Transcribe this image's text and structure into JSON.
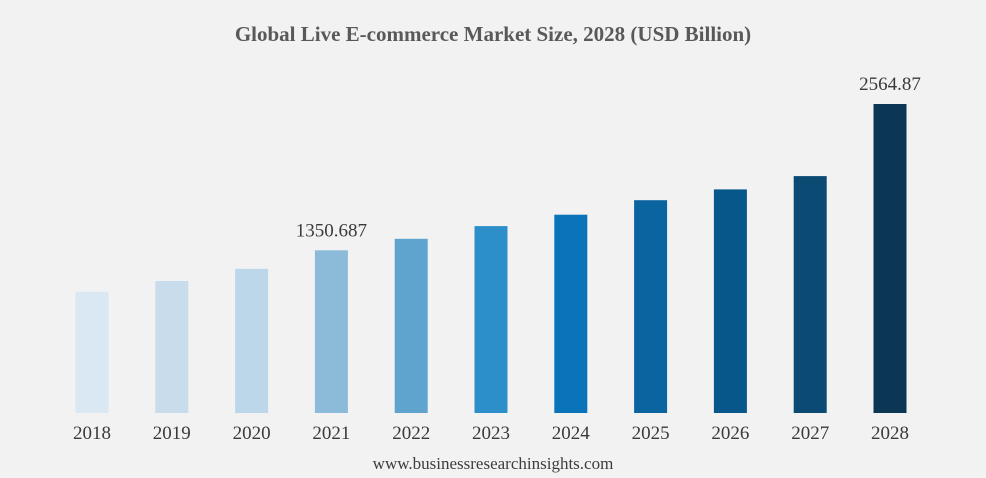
{
  "chart_data": {
    "type": "bar",
    "title": "Global Live E-commerce Market Size, 2028 (USD Billion)",
    "xlabel": "",
    "ylabel": "",
    "categories": [
      "2018",
      "2019",
      "2020",
      "2021",
      "2022",
      "2023",
      "2024",
      "2025",
      "2026",
      "2027",
      "2028"
    ],
    "values": [
      1006,
      1096,
      1196,
      1350.687,
      1446,
      1551,
      1646,
      1766,
      1856,
      1966,
      2564.87
    ],
    "labels": {
      "3": "1350.687",
      "10": "2564.87"
    },
    "ylim": [
      0,
      2564.87
    ],
    "grid": false,
    "colors": [
      "#dae8f4",
      "#c9dceb",
      "#bdd7ea",
      "#8bbbd9",
      "#5fa3cf",
      "#2d8fca",
      "#0a74bb",
      "#0a64a0",
      "#08578b",
      "#0b4a73",
      "#0b3754"
    ]
  },
  "footer": {
    "source": "www.businessresearchinsights.com"
  }
}
